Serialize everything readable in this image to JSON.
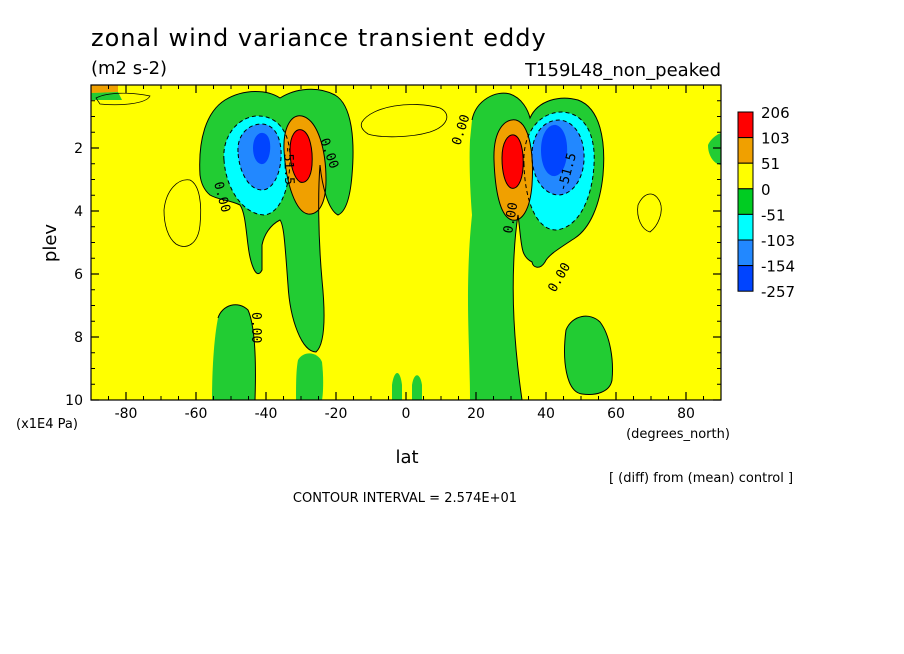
{
  "chart_data": {
    "type": "heatmap",
    "title": "zonal wind variance transient eddy",
    "units": "(m2 s-2)",
    "experiment": "T159L48_non_peaked",
    "xlabel": "lat",
    "xunits": "(degrees_north)",
    "ylabel": "plev",
    "yunits": "(x1E4 Pa)",
    "xlim": [
      -90,
      90
    ],
    "ylim": [
      10,
      0
    ],
    "x_ticks": [
      "-80",
      "-60",
      "-40",
      "-20",
      "0",
      "20",
      "40",
      "60",
      "80"
    ],
    "y_ticks": [
      "2",
      "4",
      "6",
      "8",
      "10"
    ],
    "contour_interval": "CONTOUR INTERVAL = 2.574E+01",
    "note": "[ (diff) from (mean) control ]",
    "contour_labels": [
      "0.00",
      "-51.5"
    ],
    "colorbar": {
      "levels": [
        "206",
        "103",
        "51",
        "0",
        "-51",
        "-103",
        "-154",
        "-257"
      ],
      "colors": [
        "#ff0000",
        "#f0a000",
        "#ffff00",
        "#00cc22",
        "#00ffff",
        "#2288ff",
        "#0044ff"
      ]
    },
    "palette": {
      "positive_high": "#ff0000",
      "positive_mid": "#f0a000",
      "positive_low": "#ffff00",
      "negative_low": "#22cc33",
      "negative_mid": "#00ffff",
      "negative_high_a": "#2288ff",
      "negative_high_b": "#0044ff"
    }
  }
}
